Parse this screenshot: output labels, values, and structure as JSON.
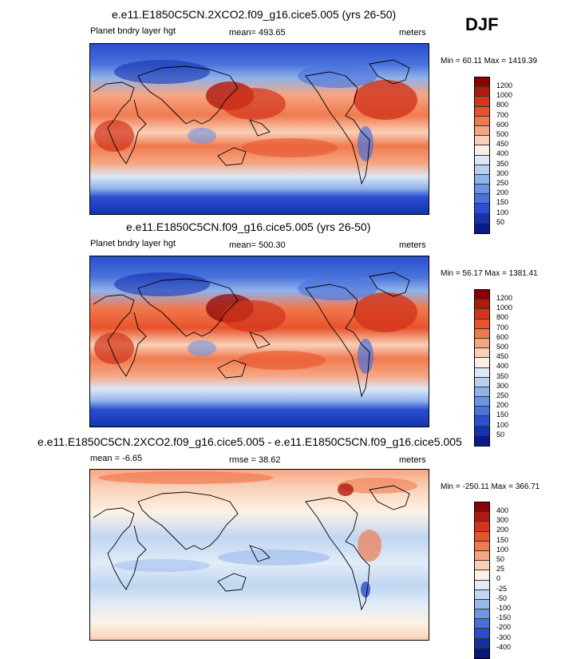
{
  "season": "DJF",
  "panels": [
    {
      "title": "e.e11.E1850C5CN.2XCO2.f09_g16.cice5.005 (yrs 26-50)",
      "left_label": "Planet bndry layer hgt",
      "center_label": "mean= 493.65",
      "right_label": "meters",
      "minmax": "Min =  60.11 Max = 1419.39",
      "levels": [
        "1200",
        "1000",
        "800",
        "700",
        "600",
        "500",
        "450",
        "400",
        "350",
        "300",
        "250",
        "200",
        "150",
        "100",
        "50"
      ],
      "colors": [
        "#8b0000",
        "#b11a10",
        "#d2341c",
        "#e8532c",
        "#f07a50",
        "#f6a582",
        "#f9d0b6",
        "#fbeee4",
        "#dce8f6",
        "#b8d0f0",
        "#8fb2ea",
        "#6c93e3",
        "#4a72dc",
        "#2a4fcf",
        "#1632b0",
        "#0b1a8a"
      ]
    },
    {
      "title": "e.e11.E1850C5CN.f09_g16.cice5.005 (yrs 26-50)",
      "left_label": "Planet bndry layer hgt",
      "center_label": "mean= 500.30",
      "right_label": "meters",
      "minmax": "Min =  56.17 Max = 1381.41",
      "levels": [
        "1200",
        "1000",
        "800",
        "700",
        "600",
        "500",
        "450",
        "400",
        "350",
        "300",
        "250",
        "200",
        "150",
        "100",
        "50"
      ],
      "colors": [
        "#8b0000",
        "#b11a10",
        "#d2341c",
        "#e8532c",
        "#f07a50",
        "#f6a582",
        "#f9d0b6",
        "#fbeee4",
        "#dce8f6",
        "#b8d0f0",
        "#8fb2ea",
        "#6c93e3",
        "#4a72dc",
        "#2a4fcf",
        "#1632b0",
        "#0b1a8a"
      ]
    },
    {
      "title": "e.e11.E1850C5CN.2XCO2.f09_g16.cice5.005 - e.e11.E1850C5CN.f09_g16.cice5.005",
      "left_label": "mean =  -6.65",
      "center_label": "rmse =  38.62",
      "right_label": "meters",
      "minmax": "Min = -250.11 Max = 366.71",
      "levels": [
        "400",
        "300",
        "200",
        "150",
        "100",
        "50",
        "25",
        "0",
        "-25",
        "-50",
        "-100",
        "-150",
        "-200",
        "-300",
        "-400"
      ],
      "colors": [
        "#8b0000",
        "#b11a10",
        "#d2341c",
        "#e8532c",
        "#f07a50",
        "#f6a582",
        "#f9d0b6",
        "#fdf1e6",
        "#e2ecf8",
        "#c0d6f2",
        "#98b8ec",
        "#7096e3",
        "#4a70d8",
        "#2a4cc6",
        "#14309e",
        "#0a1678"
      ]
    }
  ]
}
